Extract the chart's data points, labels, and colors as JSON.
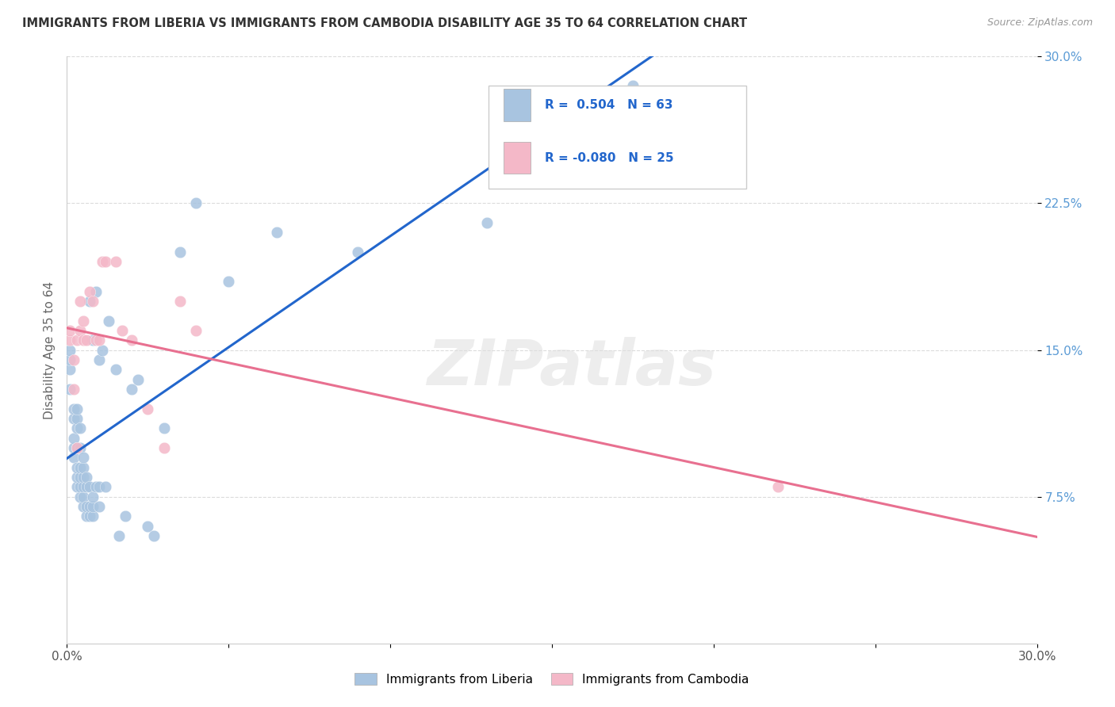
{
  "title": "IMMIGRANTS FROM LIBERIA VS IMMIGRANTS FROM CAMBODIA DISABILITY AGE 35 TO 64 CORRELATION CHART",
  "source": "Source: ZipAtlas.com",
  "ylabel": "Disability Age 35 to 64",
  "xmin": 0.0,
  "xmax": 0.3,
  "ymin": 0.0,
  "ymax": 0.3,
  "ytick_labels": [
    "7.5%",
    "15.0%",
    "22.5%",
    "30.0%"
  ],
  "ytick_values": [
    0.075,
    0.15,
    0.225,
    0.3
  ],
  "legend_r_liberia": "0.504",
  "legend_n_liberia": "63",
  "legend_r_cambodia": "-0.080",
  "legend_n_cambodia": "25",
  "color_liberia": "#a8c4e0",
  "color_cambodia": "#f4b8c8",
  "line_color_liberia": "#2266cc",
  "line_color_cambodia": "#e87090",
  "watermark": "ZIPatlas",
  "liberia_x": [
    0.001,
    0.001,
    0.001,
    0.001,
    0.002,
    0.002,
    0.002,
    0.002,
    0.002,
    0.003,
    0.003,
    0.003,
    0.003,
    0.003,
    0.003,
    0.003,
    0.004,
    0.004,
    0.004,
    0.004,
    0.004,
    0.004,
    0.005,
    0.005,
    0.005,
    0.005,
    0.005,
    0.005,
    0.006,
    0.006,
    0.006,
    0.006,
    0.007,
    0.007,
    0.007,
    0.007,
    0.008,
    0.008,
    0.008,
    0.008,
    0.009,
    0.009,
    0.01,
    0.01,
    0.01,
    0.011,
    0.012,
    0.013,
    0.015,
    0.016,
    0.018,
    0.02,
    0.022,
    0.025,
    0.027,
    0.03,
    0.035,
    0.04,
    0.05,
    0.065,
    0.09,
    0.13,
    0.175
  ],
  "liberia_y": [
    0.13,
    0.14,
    0.145,
    0.15,
    0.095,
    0.1,
    0.105,
    0.115,
    0.12,
    0.08,
    0.085,
    0.09,
    0.1,
    0.11,
    0.115,
    0.12,
    0.075,
    0.08,
    0.085,
    0.09,
    0.1,
    0.11,
    0.07,
    0.075,
    0.08,
    0.085,
    0.09,
    0.095,
    0.065,
    0.07,
    0.08,
    0.085,
    0.065,
    0.07,
    0.08,
    0.175,
    0.065,
    0.07,
    0.075,
    0.155,
    0.08,
    0.18,
    0.07,
    0.08,
    0.145,
    0.15,
    0.08,
    0.165,
    0.14,
    0.055,
    0.065,
    0.13,
    0.135,
    0.06,
    0.055,
    0.11,
    0.2,
    0.225,
    0.185,
    0.21,
    0.2,
    0.215,
    0.285
  ],
  "cambodia_x": [
    0.001,
    0.001,
    0.002,
    0.002,
    0.003,
    0.003,
    0.004,
    0.004,
    0.005,
    0.005,
    0.006,
    0.007,
    0.008,
    0.009,
    0.01,
    0.011,
    0.012,
    0.015,
    0.017,
    0.02,
    0.025,
    0.03,
    0.035,
    0.04,
    0.22
  ],
  "cambodia_y": [
    0.155,
    0.16,
    0.13,
    0.145,
    0.1,
    0.155,
    0.16,
    0.175,
    0.155,
    0.165,
    0.155,
    0.18,
    0.175,
    0.155,
    0.155,
    0.195,
    0.195,
    0.195,
    0.16,
    0.155,
    0.12,
    0.1,
    0.175,
    0.16,
    0.08
  ]
}
